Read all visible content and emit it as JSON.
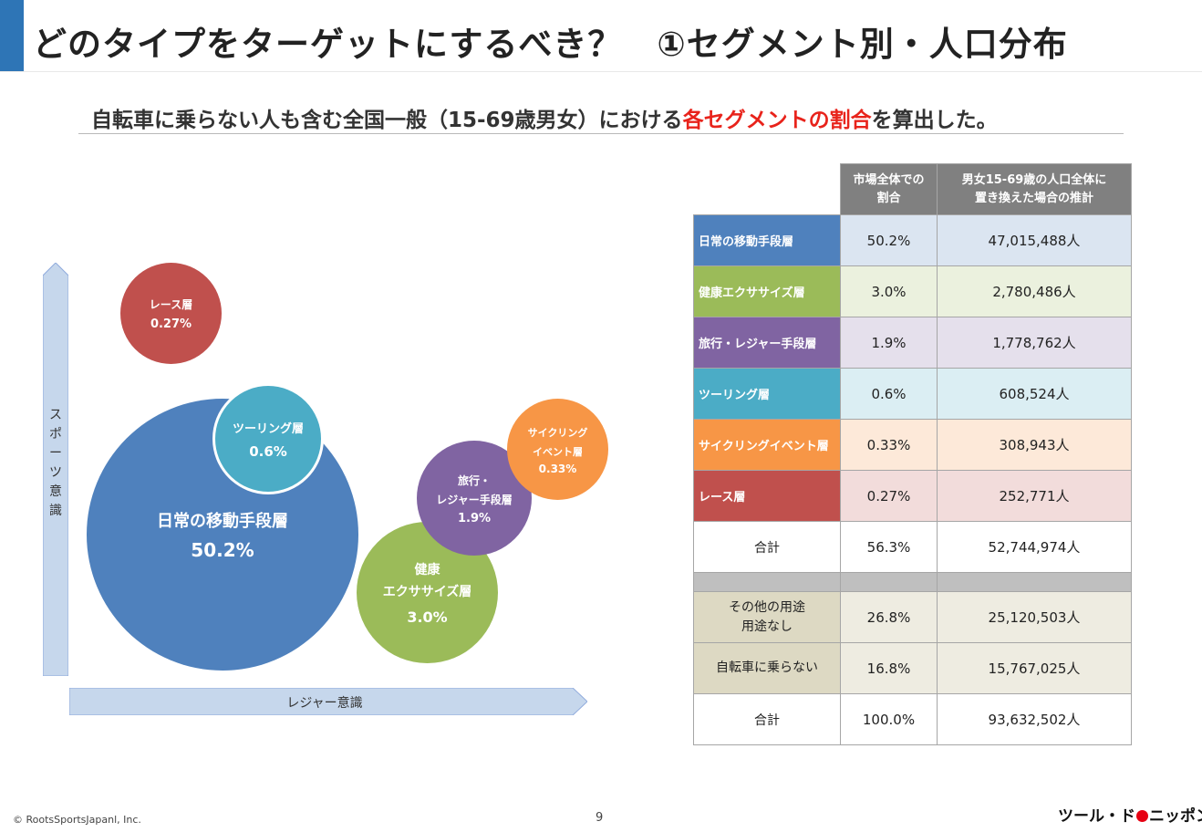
{
  "page": {
    "title": "どのタイプをターゲットにするべき？　①セグメント別・人口分布",
    "subtitle_pre": "自転車に乗らない人も含む全国一般（15-69歳男女）における",
    "subtitle_highlight": "各セグメントの割合",
    "subtitle_post": "を算出した。"
  },
  "chart": {
    "y_axis_chars": [
      "ス",
      "ポ",
      "ー",
      "ツ",
      "意",
      "識"
    ],
    "x_axis_label": "レジャー意識",
    "bubbles": {
      "daily": {
        "name": "日常の移動手段層",
        "pct": "50.2%"
      },
      "touring": {
        "name": "ツーリング層",
        "pct": "0.6%"
      },
      "race": {
        "name": "レース層",
        "pct": "0.27%"
      },
      "health": {
        "name1": "健康",
        "name2": "エクササイズ層",
        "pct": "3.0%"
      },
      "travel": {
        "name1": "旅行・",
        "name2": "レジャー手段層",
        "pct": "1.9%"
      },
      "event": {
        "name1": "サイクリング",
        "name2": "イベント層",
        "pct": "0.33%"
      }
    },
    "colors": {
      "daily": "#4f81bd",
      "health": "#9bbb59",
      "travel": "#8064a2",
      "touring": "#4bacc6",
      "event": "#f79646",
      "race": "#c0504d"
    }
  },
  "table": {
    "header_share_1": "市場全体での",
    "header_share_2": "割合",
    "header_pop_1": "男女15-69歳の人口全体に",
    "header_pop_2": "置き換えた場合の推計",
    "rows": [
      {
        "label": "日常の移動手段層",
        "share": "50.2%",
        "population": "47,015,488人",
        "color": "#4f81bd",
        "tint": "#dbe5f1"
      },
      {
        "label": "健康エクササイズ層",
        "share": "3.0%",
        "population": "2,780,486人",
        "color": "#9bbb59",
        "tint": "#ebf1de"
      },
      {
        "label": "旅行・レジャー手段層",
        "share": "1.9%",
        "population": "1,778,762人",
        "color": "#8064a2",
        "tint": "#e5e0ec"
      },
      {
        "label": "ツーリング層",
        "share": "0.6%",
        "population": "608,524人",
        "color": "#4bacc6",
        "tint": "#dbeef3"
      },
      {
        "label": "サイクリングイベント層",
        "share": "0.33%",
        "population": "308,943人",
        "color": "#f79646",
        "tint": "#fde9d9"
      },
      {
        "label": "レース層",
        "share": "0.27%",
        "population": "252,771人",
        "color": "#c0504d",
        "tint": "#f2dcdb"
      }
    ],
    "subtotal": {
      "label": "合計",
      "share": "56.3%",
      "population": "52,744,974人"
    },
    "others": [
      {
        "label_1": "その他の用途",
        "label_2": "用途なし",
        "share": "26.8%",
        "population": "25,120,503人"
      },
      {
        "label_1": "自転車に乗らない",
        "label_2": "",
        "share": "16.8%",
        "population": "15,767,025人"
      }
    ],
    "total": {
      "label": "合計",
      "share": "100.0%",
      "population": "93,632,502人"
    }
  },
  "footer": {
    "copyright": "© RootsSportsJapanl, Inc.",
    "page_number": "9",
    "logo_left": "ツール・ド",
    "logo_right": "ニッポン"
  }
}
